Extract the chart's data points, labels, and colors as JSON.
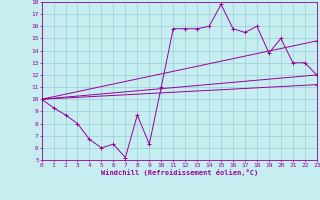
{
  "xlabel": "Windchill (Refroidissement éolien,°C)",
  "xlim": [
    0,
    23
  ],
  "ylim": [
    5,
    18
  ],
  "xticks": [
    0,
    1,
    2,
    3,
    4,
    5,
    6,
    7,
    8,
    9,
    10,
    11,
    12,
    13,
    14,
    15,
    16,
    17,
    18,
    19,
    20,
    21,
    22,
    23
  ],
  "yticks": [
    5,
    6,
    7,
    8,
    9,
    10,
    11,
    12,
    13,
    14,
    15,
    16,
    17,
    18
  ],
  "background_color": "#c6eef0",
  "grid_color": "#9accd8",
  "line_color": "#990099",
  "line1_x": [
    0,
    1,
    2,
    3,
    4,
    5,
    6,
    7,
    8,
    9,
    10,
    11,
    12,
    13,
    14,
    15,
    16,
    17,
    18,
    19,
    20,
    21,
    22,
    23
  ],
  "line1_y": [
    10.0,
    9.3,
    8.7,
    8.0,
    6.7,
    6.0,
    6.3,
    5.2,
    8.7,
    6.3,
    11.0,
    15.8,
    15.8,
    15.8,
    16.0,
    17.8,
    15.8,
    15.5,
    16.0,
    13.8,
    15.0,
    13.0,
    13.0,
    12.0
  ],
  "line2_x": [
    0,
    23
  ],
  "line2_y": [
    10.0,
    12.0
  ],
  "line3_x": [
    0,
    23
  ],
  "line3_y": [
    10.0,
    11.2
  ],
  "line4_x": [
    0,
    23
  ],
  "line4_y": [
    10.0,
    14.8
  ],
  "figwidth": 3.2,
  "figheight": 2.0,
  "dpi": 100
}
